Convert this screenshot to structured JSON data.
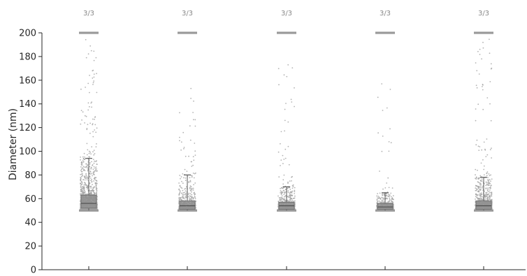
{
  "chart_data": {
    "type": "box-scatter",
    "ylabel": "Diameter (nm)",
    "ylim": [
      0,
      200
    ],
    "yticks": [
      0,
      20,
      40,
      60,
      80,
      100,
      120,
      140,
      160,
      180,
      200
    ],
    "grid": false,
    "legend": "none",
    "colors": {
      "points": "#a6a6a6",
      "box": "#8c8c8c",
      "whisker": "#595959",
      "caps": "#999999",
      "axis": "#262626"
    },
    "clip_min": 50,
    "clip_max": 200,
    "groups": [
      {
        "label": "3/3",
        "median": 56,
        "q1": 52,
        "q3": 63,
        "whisker_low": 50,
        "whisker_high": 94,
        "n_points": 1500,
        "max_outlier": 197
      },
      {
        "label": "3/3",
        "median": 54,
        "q1": 51,
        "q3": 58,
        "whisker_low": 50,
        "whisker_high": 80,
        "n_points": 700,
        "max_outlier": 160
      },
      {
        "label": "3/3",
        "median": 54,
        "q1": 51,
        "q3": 57,
        "whisker_low": 50,
        "whisker_high": 70,
        "n_points": 750,
        "max_outlier": 177
      },
      {
        "label": "3/3",
        "median": 53,
        "q1": 51,
        "q3": 56,
        "whisker_low": 50,
        "whisker_high": 65,
        "n_points": 600,
        "max_outlier": 184
      },
      {
        "label": "3/3",
        "median": 54,
        "q1": 51,
        "q3": 58,
        "whisker_low": 50,
        "whisker_high": 78,
        "n_points": 1100,
        "max_outlier": 197
      }
    ]
  }
}
